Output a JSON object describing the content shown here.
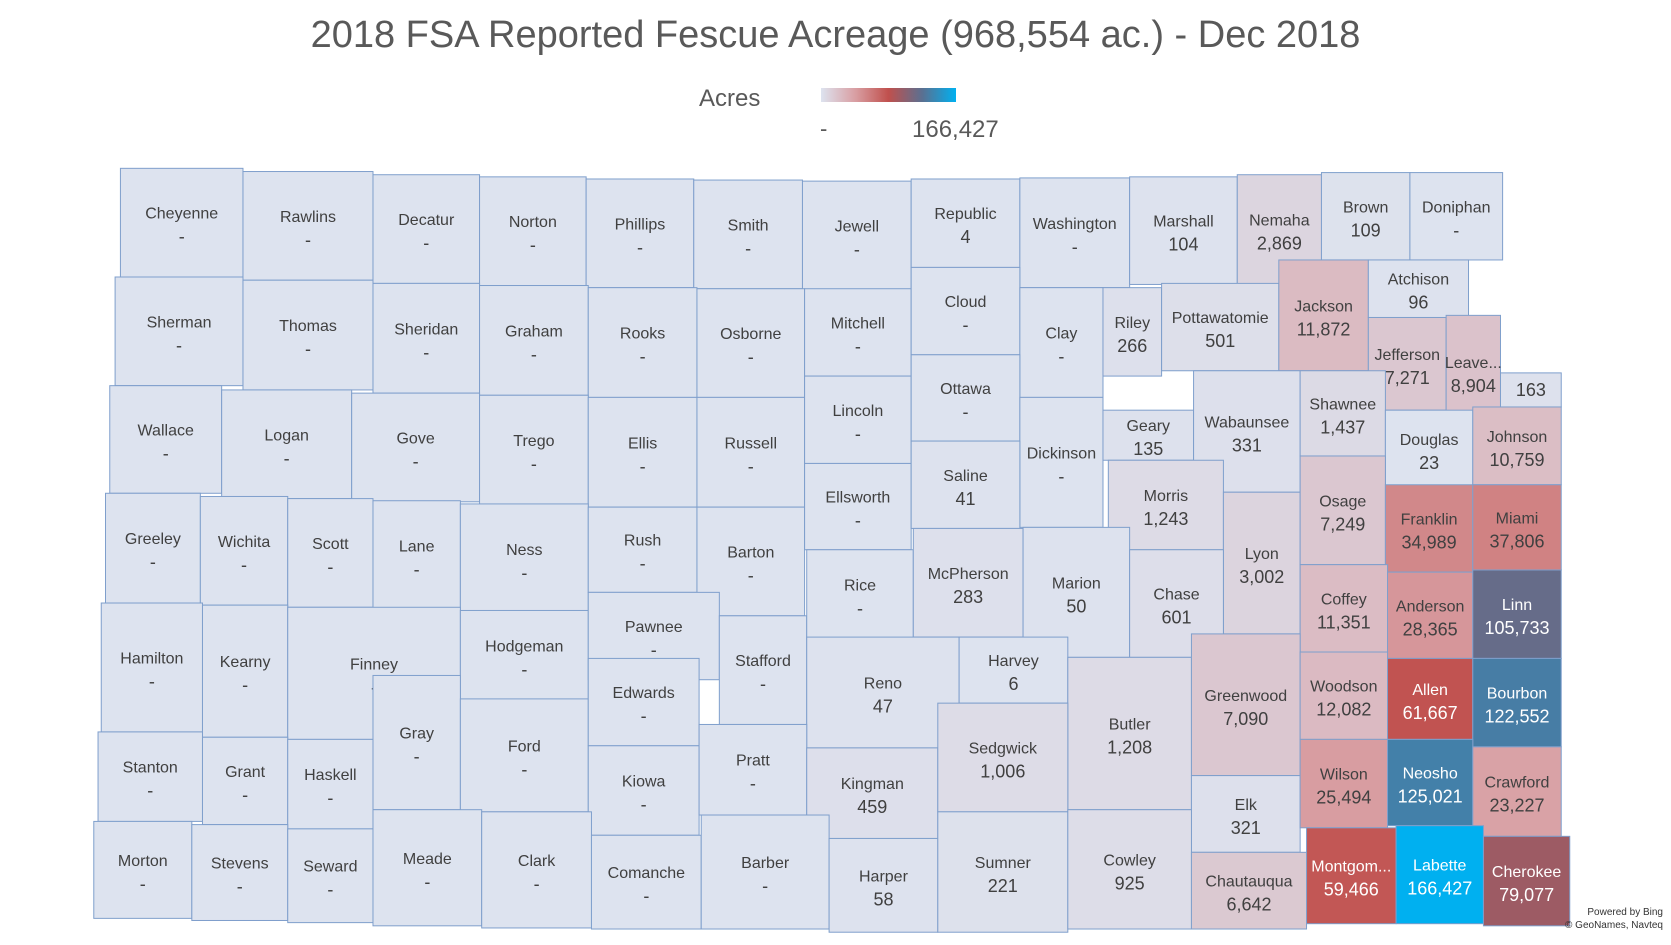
{
  "title": "2018 FSA Reported Fescue Acreage (968,554 ac.) - Dec 2018",
  "legend": {
    "label": "Acres",
    "min_label": "-",
    "max_label": "166,427",
    "max_value": 166427,
    "colors": [
      "#dde3ef",
      "#d9a0a4",
      "#c0504d",
      "#5a7091",
      "#00b0f0"
    ]
  },
  "credit": [
    "Powered by Bing",
    "© GeoNames, Navteq"
  ],
  "counties": [
    {
      "name": "Cheyenne",
      "label": "-",
      "acres": 0
    },
    {
      "name": "Rawlins",
      "label": "-",
      "acres": 0
    },
    {
      "name": "Decatur",
      "label": "-",
      "acres": 0
    },
    {
      "name": "Norton",
      "label": "-",
      "acres": 0
    },
    {
      "name": "Phillips",
      "label": "-",
      "acres": 0
    },
    {
      "name": "Smith",
      "label": "-",
      "acres": 0
    },
    {
      "name": "Jewell",
      "label": "-",
      "acres": 0
    },
    {
      "name": "Republic",
      "label": "4",
      "acres": 4
    },
    {
      "name": "Washington",
      "label": "-",
      "acres": 0
    },
    {
      "name": "Marshall",
      "label": "104",
      "acres": 104
    },
    {
      "name": "Nemaha",
      "label": "2,869",
      "acres": 2869
    },
    {
      "name": "Brown",
      "label": "109",
      "acres": 109
    },
    {
      "name": "Doniphan",
      "label": "-",
      "acres": 0
    },
    {
      "name": "Sherman",
      "label": "-",
      "acres": 0
    },
    {
      "name": "Thomas",
      "label": "-",
      "acres": 0
    },
    {
      "name": "Sheridan",
      "label": "-",
      "acres": 0
    },
    {
      "name": "Graham",
      "label": "-",
      "acres": 0
    },
    {
      "name": "Rooks",
      "label": "-",
      "acres": 0
    },
    {
      "name": "Osborne",
      "label": "-",
      "acres": 0
    },
    {
      "name": "Mitchell",
      "label": "-",
      "acres": 0
    },
    {
      "name": "Cloud",
      "label": "-",
      "acres": 0
    },
    {
      "name": "Clay",
      "label": "-",
      "acres": 0
    },
    {
      "name": "Riley",
      "label": "266",
      "acres": 266
    },
    {
      "name": "Pottawatomie",
      "label": "501",
      "acres": 501
    },
    {
      "name": "Jackson",
      "label": "11,872",
      "acres": 11872
    },
    {
      "name": "Atchison",
      "label": "96",
      "acres": 96
    },
    {
      "name": "Jefferson",
      "label": "7,271",
      "acres": 7271
    },
    {
      "name": "Leave...",
      "label": "8,904",
      "acres": 8904
    },
    {
      "name": "",
      "label": "163",
      "acres": 163
    },
    {
      "name": "Wallace",
      "label": "-",
      "acres": 0
    },
    {
      "name": "Logan",
      "label": "-",
      "acres": 0
    },
    {
      "name": "Gove",
      "label": "-",
      "acres": 0
    },
    {
      "name": "Trego",
      "label": "-",
      "acres": 0
    },
    {
      "name": "Ellis",
      "label": "-",
      "acres": 0
    },
    {
      "name": "Russell",
      "label": "-",
      "acres": 0
    },
    {
      "name": "Lincoln",
      "label": "-",
      "acres": 0
    },
    {
      "name": "Ottawa",
      "label": "-",
      "acres": 0
    },
    {
      "name": "Dickinson",
      "label": "-",
      "acres": 0
    },
    {
      "name": "Geary",
      "label": "135",
      "acres": 135
    },
    {
      "name": "Wabaunsee",
      "label": "331",
      "acres": 331
    },
    {
      "name": "Shawnee",
      "label": "1,437",
      "acres": 1437
    },
    {
      "name": "Douglas",
      "label": "23",
      "acres": 23
    },
    {
      "name": "Johnson",
      "label": "10,759",
      "acres": 10759
    },
    {
      "name": "Greeley",
      "label": "-",
      "acres": 0
    },
    {
      "name": "Wichita",
      "label": "-",
      "acres": 0
    },
    {
      "name": "Scott",
      "label": "-",
      "acres": 0
    },
    {
      "name": "Lane",
      "label": "-",
      "acres": 0
    },
    {
      "name": "Ness",
      "label": "-",
      "acres": 0
    },
    {
      "name": "Rush",
      "label": "-",
      "acres": 0
    },
    {
      "name": "Barton",
      "label": "-",
      "acres": 0
    },
    {
      "name": "Ellsworth",
      "label": "-",
      "acres": 0
    },
    {
      "name": "Saline",
      "label": "41",
      "acres": 41
    },
    {
      "name": "Morris",
      "label": "1,243",
      "acres": 1243
    },
    {
      "name": "Lyon",
      "label": "3,002",
      "acres": 3002
    },
    {
      "name": "Osage",
      "label": "7,249",
      "acres": 7249
    },
    {
      "name": "Franklin",
      "label": "34,989",
      "acres": 34989
    },
    {
      "name": "Miami",
      "label": "37,806",
      "acres": 37806
    },
    {
      "name": "Hamilton",
      "label": "-",
      "acres": 0
    },
    {
      "name": "Kearny",
      "label": "-",
      "acres": 0
    },
    {
      "name": "Finney",
      "label": "-",
      "acres": 0
    },
    {
      "name": "Hodgeman",
      "label": "-",
      "acres": 0
    },
    {
      "name": "Pawnee",
      "label": "-",
      "acres": 0
    },
    {
      "name": "Stafford",
      "label": "-",
      "acres": 0
    },
    {
      "name": "Rice",
      "label": "-",
      "acres": 0
    },
    {
      "name": "McPherson",
      "label": "283",
      "acres": 283
    },
    {
      "name": "Marion",
      "label": "50",
      "acres": 50
    },
    {
      "name": "Chase",
      "label": "601",
      "acres": 601
    },
    {
      "name": "Coffey",
      "label": "11,351",
      "acres": 11351
    },
    {
      "name": "Anderson",
      "label": "28,365",
      "acres": 28365
    },
    {
      "name": "Linn",
      "label": "105,733",
      "acres": 105733
    },
    {
      "name": "Gray",
      "label": "-",
      "acres": 0
    },
    {
      "name": "Ford",
      "label": "-",
      "acres": 0
    },
    {
      "name": "Edwards",
      "label": "-",
      "acres": 0
    },
    {
      "name": "Reno",
      "label": "47",
      "acres": 47
    },
    {
      "name": "Harvey",
      "label": "6",
      "acres": 6
    },
    {
      "name": "Butler",
      "label": "1,208",
      "acres": 1208
    },
    {
      "name": "Greenwood",
      "label": "7,090",
      "acres": 7090
    },
    {
      "name": "Woodson",
      "label": "12,082",
      "acres": 12082
    },
    {
      "name": "Allen",
      "label": "61,667",
      "acres": 61667
    },
    {
      "name": "Bourbon",
      "label": "122,552",
      "acres": 122552
    },
    {
      "name": "Stanton",
      "label": "-",
      "acres": 0
    },
    {
      "name": "Grant",
      "label": "-",
      "acres": 0
    },
    {
      "name": "Haskell",
      "label": "-",
      "acres": 0
    },
    {
      "name": "Kiowa",
      "label": "-",
      "acres": 0
    },
    {
      "name": "Pratt",
      "label": "-",
      "acres": 0
    },
    {
      "name": "Kingman",
      "label": "459",
      "acres": 459
    },
    {
      "name": "Sedgwick",
      "label": "1,006",
      "acres": 1006
    },
    {
      "name": "Elk",
      "label": "321",
      "acres": 321
    },
    {
      "name": "Wilson",
      "label": "25,494",
      "acres": 25494
    },
    {
      "name": "Neosho",
      "label": "125,021",
      "acres": 125021
    },
    {
      "name": "Crawford",
      "label": "23,227",
      "acres": 23227
    },
    {
      "name": "Morton",
      "label": "-",
      "acres": 0
    },
    {
      "name": "Stevens",
      "label": "-",
      "acres": 0
    },
    {
      "name": "Seward",
      "label": "-",
      "acres": 0
    },
    {
      "name": "Meade",
      "label": "-",
      "acres": 0
    },
    {
      "name": "Clark",
      "label": "-",
      "acres": 0
    },
    {
      "name": "Comanche",
      "label": "-",
      "acres": 0
    },
    {
      "name": "Barber",
      "label": "-",
      "acres": 0
    },
    {
      "name": "Harper",
      "label": "58",
      "acres": 58
    },
    {
      "name": "Sumner",
      "label": "221",
      "acres": 221
    },
    {
      "name": "Cowley",
      "label": "925",
      "acres": 925
    },
    {
      "name": "Chautauqua",
      "label": "6,642",
      "acres": 6642
    },
    {
      "name": "Montgom...",
      "label": "59,466",
      "acres": 59466
    },
    {
      "name": "Labette",
      "label": "166,427",
      "acres": 166427
    },
    {
      "name": "Cherokee",
      "label": "79,077",
      "acres": 79077
    }
  ]
}
